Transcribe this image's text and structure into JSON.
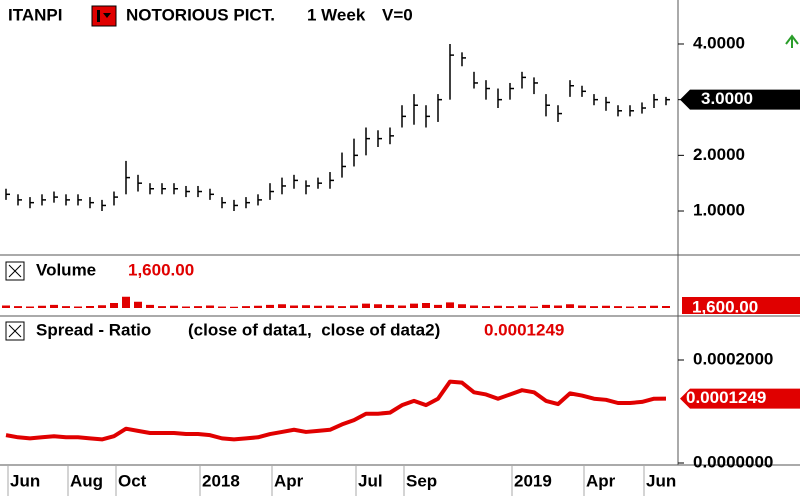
{
  "chart_data": [
    {
      "type": "ohlc",
      "title": "ITANPI",
      "subtitle": "NOTORIOUS PICT.",
      "interval": "1 Week",
      "volume_note": "V=0",
      "ylim": [
        0.21,
        4.79
      ],
      "yticks": [
        {
          "value": 1,
          "label": "1.0000"
        },
        {
          "value": 2,
          "label": "2.0000"
        },
        {
          "value": 3,
          "label": "3.0000"
        },
        {
          "value": 4,
          "label": "4.0000"
        }
      ],
      "last": {
        "value": 3,
        "label": "3.0000"
      },
      "series": [
        {
          "color": "#000000",
          "high": [
            1.4,
            1.3,
            1.25,
            1.3,
            1.35,
            1.3,
            1.3,
            1.25,
            1.2,
            1.35,
            1.9,
            1.65,
            1.5,
            1.5,
            1.5,
            1.45,
            1.45,
            1.4,
            1.25,
            1.2,
            1.25,
            1.3,
            1.5,
            1.6,
            1.65,
            1.55,
            1.6,
            1.7,
            2.05,
            2.3,
            2.5,
            2.45,
            2.5,
            2.9,
            3.1,
            2.9,
            3.1,
            4.0,
            3.85,
            3.5,
            3.35,
            3.2,
            3.3,
            3.5,
            3.4,
            3.1,
            2.9,
            3.35,
            3.25,
            3.1,
            3.05,
            2.9,
            2.9,
            2.95,
            3.1,
            3.05
          ],
          "low": [
            1.2,
            1.1,
            1.05,
            1.1,
            1.15,
            1.1,
            1.1,
            1.05,
            1.0,
            1.1,
            1.3,
            1.35,
            1.3,
            1.3,
            1.3,
            1.25,
            1.25,
            1.2,
            1.05,
            1.0,
            1.05,
            1.1,
            1.2,
            1.3,
            1.4,
            1.3,
            1.4,
            1.4,
            1.6,
            1.8,
            2.0,
            2.15,
            2.2,
            2.5,
            2.55,
            2.5,
            2.6,
            3.0,
            3.6,
            3.2,
            3.0,
            2.85,
            3.0,
            3.2,
            3.1,
            2.7,
            2.6,
            3.05,
            3.05,
            2.9,
            2.8,
            2.7,
            2.7,
            2.75,
            2.85,
            2.9
          ],
          "close": [
            1.3,
            1.2,
            1.15,
            1.2,
            1.25,
            1.2,
            1.2,
            1.15,
            1.1,
            1.25,
            1.6,
            1.5,
            1.4,
            1.4,
            1.4,
            1.35,
            1.35,
            1.3,
            1.15,
            1.1,
            1.15,
            1.2,
            1.35,
            1.45,
            1.55,
            1.45,
            1.5,
            1.55,
            1.8,
            2.0,
            2.3,
            2.3,
            2.35,
            2.7,
            2.9,
            2.7,
            3.0,
            3.8,
            3.75,
            3.3,
            3.2,
            3.0,
            3.2,
            3.4,
            3.3,
            2.9,
            2.75,
            3.25,
            3.15,
            3.0,
            2.95,
            2.8,
            2.8,
            2.85,
            3.0,
            3.0
          ]
        }
      ]
    },
    {
      "type": "bar",
      "title": "Volume",
      "ylim": [
        0,
        40000
      ],
      "last": {
        "value": 1600,
        "label": "1,600.00"
      },
      "series": [
        {
          "color": "#e00000",
          "values": [
            2000,
            1500,
            1200,
            1800,
            2500,
            1500,
            1200,
            1600,
            2200,
            4000,
            9000,
            5000,
            2500,
            1500,
            1800,
            1200,
            1500,
            2000,
            1200,
            1000,
            1500,
            1800,
            2500,
            3000,
            2000,
            2200,
            1800,
            2000,
            1500,
            2000,
            3500,
            3000,
            2500,
            2000,
            3500,
            4000,
            2500,
            4500,
            3000,
            2000,
            1500,
            1800,
            1500,
            2000,
            1200,
            2500,
            2000,
            3000,
            2000,
            1500,
            1800,
            1500,
            1200,
            1500,
            1800,
            1600
          ]
        }
      ]
    },
    {
      "type": "line",
      "title": "Spread - Ratio",
      "subtitle": "(close of data1,  close of data2)",
      "ylim": [
        -3.9e-06,
        0.0002777
      ],
      "yticks": [
        {
          "value": 0,
          "label": "0.0000000"
        },
        {
          "value": 0.0002,
          "label": "0.0002000"
        }
      ],
      "categories": [
        null,
        "Jun",
        null,
        null,
        null,
        null,
        "Aug",
        null,
        null,
        null,
        "Oct",
        null,
        null,
        null,
        null,
        null,
        null,
        "2018",
        null,
        null,
        null,
        null,
        null,
        "Apr",
        null,
        null,
        null,
        null,
        null,
        null,
        "Jul",
        null,
        null,
        null,
        "Sep",
        null,
        null,
        null,
        null,
        null,
        null,
        null,
        null,
        "2019",
        null,
        null,
        null,
        null,
        null,
        "Apr",
        null,
        null,
        null,
        null,
        "Jun",
        null
      ],
      "series": [
        {
          "color": "#e00000",
          "values": [
            5.41e-05,
            4.99e-05,
            4.78e-05,
            4.99e-05,
            5.2e-05,
            4.99e-05,
            4.99e-05,
            4.78e-05,
            4.58e-05,
            5.2e-05,
            6.66e-05,
            6.24e-05,
            5.82e-05,
            5.82e-05,
            5.82e-05,
            5.62e-05,
            5.62e-05,
            5.41e-05,
            4.78e-05,
            4.58e-05,
            4.78e-05,
            4.99e-05,
            5.62e-05,
            6.03e-05,
            6.45e-05,
            6.03e-05,
            6.24e-05,
            6.45e-05,
            7.49e-05,
            8.32e-05,
            9.57e-05,
            9.57e-05,
            9.78e-05,
            0.0001123,
            0.0001206,
            0.0001123,
            0.0001248,
            0.0001581,
            0.000156,
            0.0001373,
            0.0001331,
            0.0001248,
            0.0001331,
            0.0001414,
            0.0001373,
            0.0001206,
            0.0001144,
            0.0001352,
            0.000131,
            0.0001248,
            0.0001227,
            0.0001165,
            0.0001165,
            0.0001186,
            0.0001248,
            0.0001249
          ]
        }
      ]
    }
  ]
}
